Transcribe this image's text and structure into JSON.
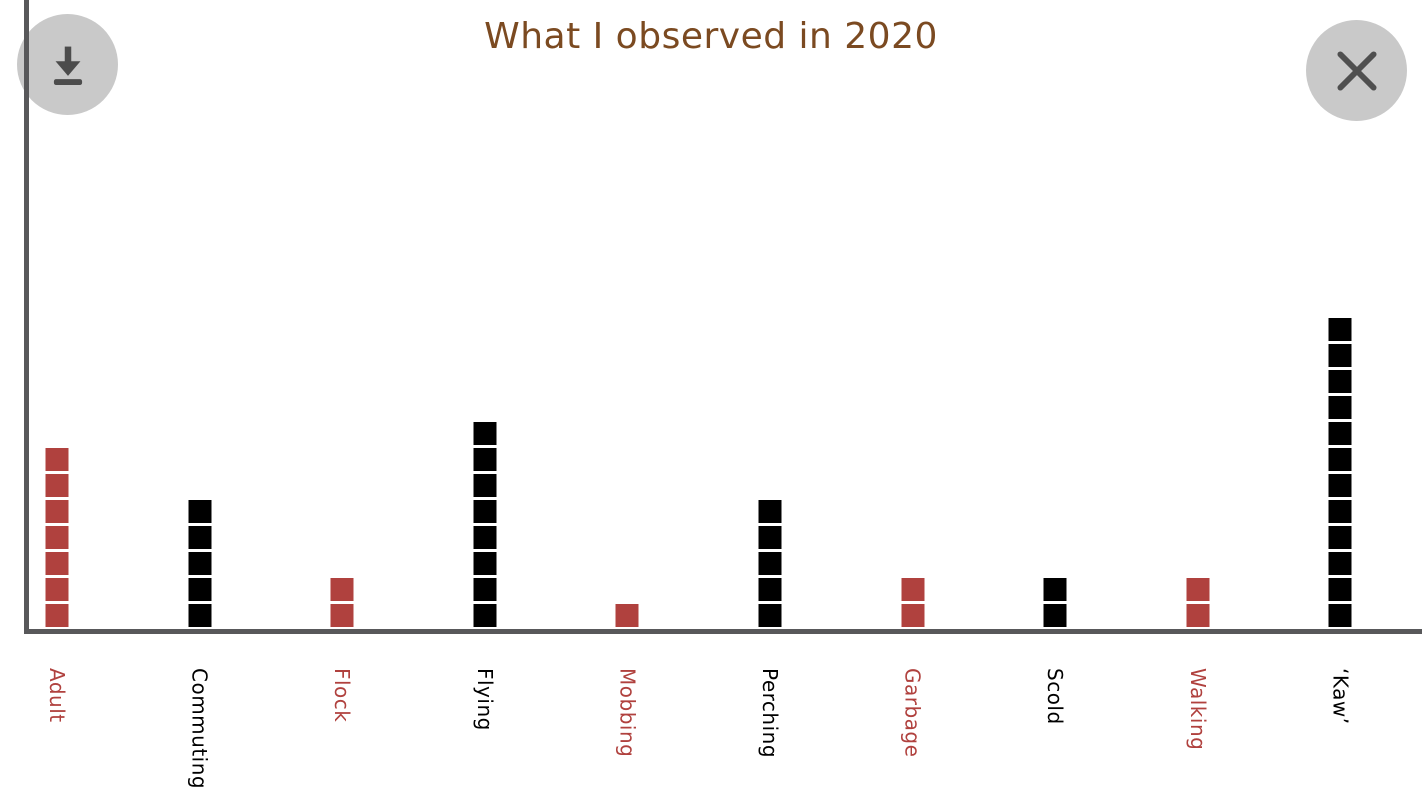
{
  "header": {
    "title": "What I observed in 2020"
  },
  "toolbar": {
    "download_icon": "download-icon",
    "close_icon": "close-icon"
  },
  "colors": {
    "title": "#7b4a21",
    "axis": "#58585a",
    "button_bg": "#c9c9c9",
    "button_icon": "#4c4c4c",
    "red": "#b0413e",
    "black": "#000000"
  },
  "chart_data": {
    "type": "bar",
    "subtype": "unit_square_pictograph",
    "title": "What I observed in 2020",
    "unit_per_square": 1,
    "categories": [
      "Adult",
      "Commuting",
      "Flock",
      "Flying",
      "Mobbing",
      "Perching",
      "Garbage",
      "Scold",
      "Walking",
      "‘Kaw’"
    ],
    "values": [
      7,
      5,
      2,
      8,
      1,
      5,
      2,
      2,
      2,
      12
    ],
    "bar_colors": [
      "#b0413e",
      "#000000",
      "#b0413e",
      "#000000",
      "#b0413e",
      "#000000",
      "#b0413e",
      "#000000",
      "#b0413e",
      "#000000"
    ],
    "label_colors": [
      "#b0413e",
      "#000000",
      "#b0413e",
      "#000000",
      "#b0413e",
      "#000000",
      "#b0413e",
      "#000000",
      "#b0413e",
      "#000000"
    ],
    "ylim": [
      0,
      12
    ],
    "grid": false,
    "legend": false,
    "x_label_rotation": 90
  }
}
